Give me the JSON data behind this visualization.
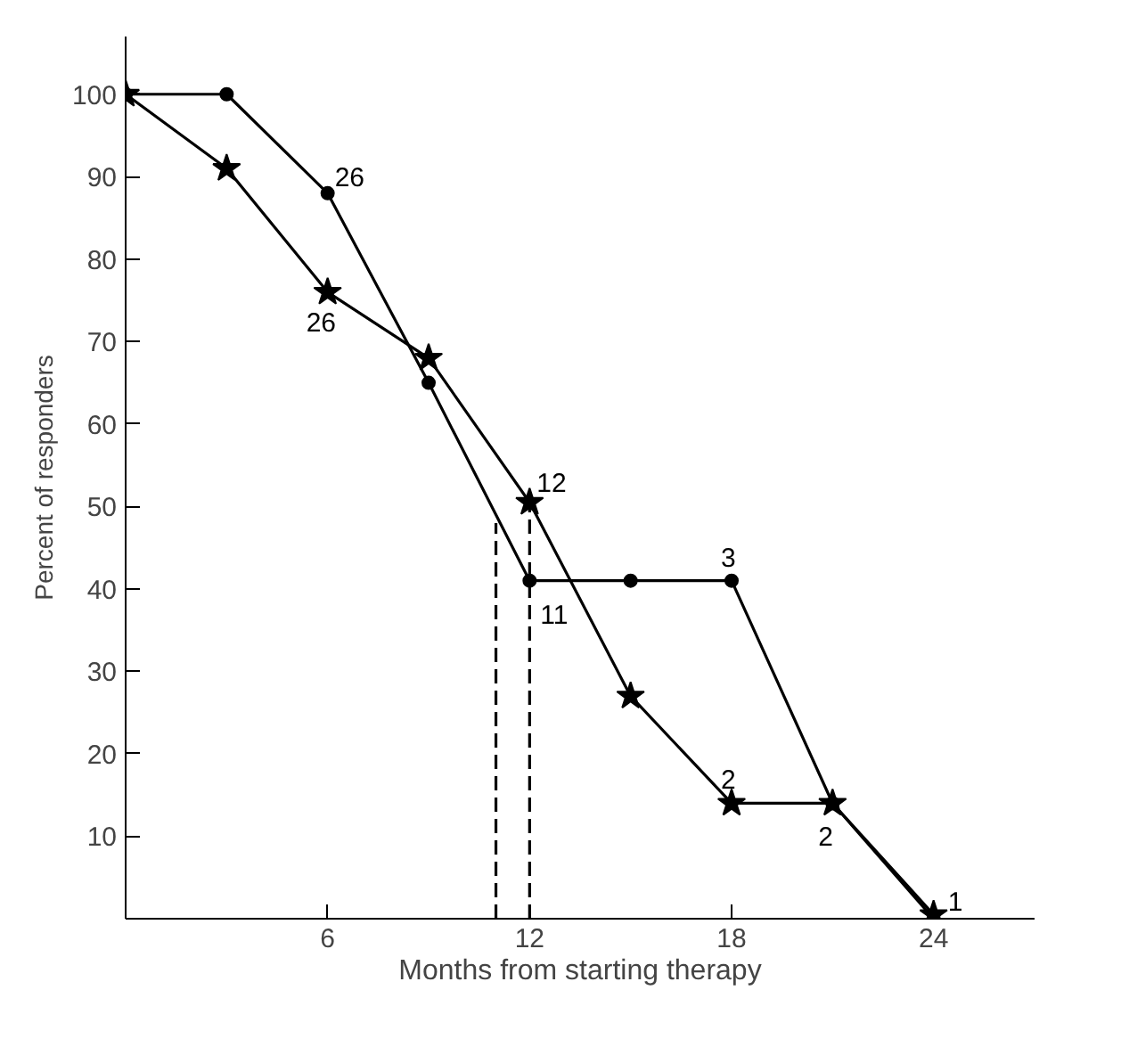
{
  "chart_data": {
    "type": "line",
    "xlabel": "Months from starting therapy",
    "ylabel": "Percent of responders",
    "xlim": [
      0,
      27
    ],
    "ylim": [
      0,
      107
    ],
    "xticks": [
      6,
      12,
      18,
      24
    ],
    "yticks": [
      10,
      20,
      30,
      40,
      50,
      60,
      70,
      80,
      90,
      100
    ],
    "grid": false,
    "line_style": "solid",
    "series": [
      {
        "color": "#000000",
        "marker": "circle",
        "x": [
          0,
          3,
          6,
          9,
          12,
          15,
          18,
          21,
          24
        ],
        "values": [
          100,
          100,
          88,
          65,
          41,
          41,
          41,
          14,
          0
        ]
      },
      {
        "color": "#000000",
        "marker": "star",
        "x": [
          0,
          3,
          6,
          9,
          12,
          15,
          18,
          21,
          24
        ],
        "values": [
          100,
          91,
          76,
          68,
          50.5,
          27,
          14,
          14,
          0.5
        ]
      },
      {
        "color": "#000000",
        "marker": "none",
        "line_style": "dashed",
        "x": [
          11,
          11
        ],
        "values": [
          0,
          48
        ]
      },
      {
        "color": "#000000",
        "marker": "none",
        "line_style": "dashed",
        "x": [
          12,
          12
        ],
        "values": [
          0,
          50.5
        ]
      }
    ],
    "annotations": [
      {
        "text": "26",
        "x": 6,
        "y": 88
      },
      {
        "text": "26",
        "x": 6,
        "y": 76
      },
      {
        "text": "12",
        "x": 12,
        "y": 50.5
      },
      {
        "text": "11",
        "x": 12,
        "y": 41
      },
      {
        "text": "3",
        "x": 18,
        "y": 41
      },
      {
        "text": "2",
        "x": 18,
        "y": 14
      },
      {
        "text": "2",
        "x": 21,
        "y": 14
      },
      {
        "text": "1",
        "x": 24,
        "y": 0.5
      }
    ]
  }
}
